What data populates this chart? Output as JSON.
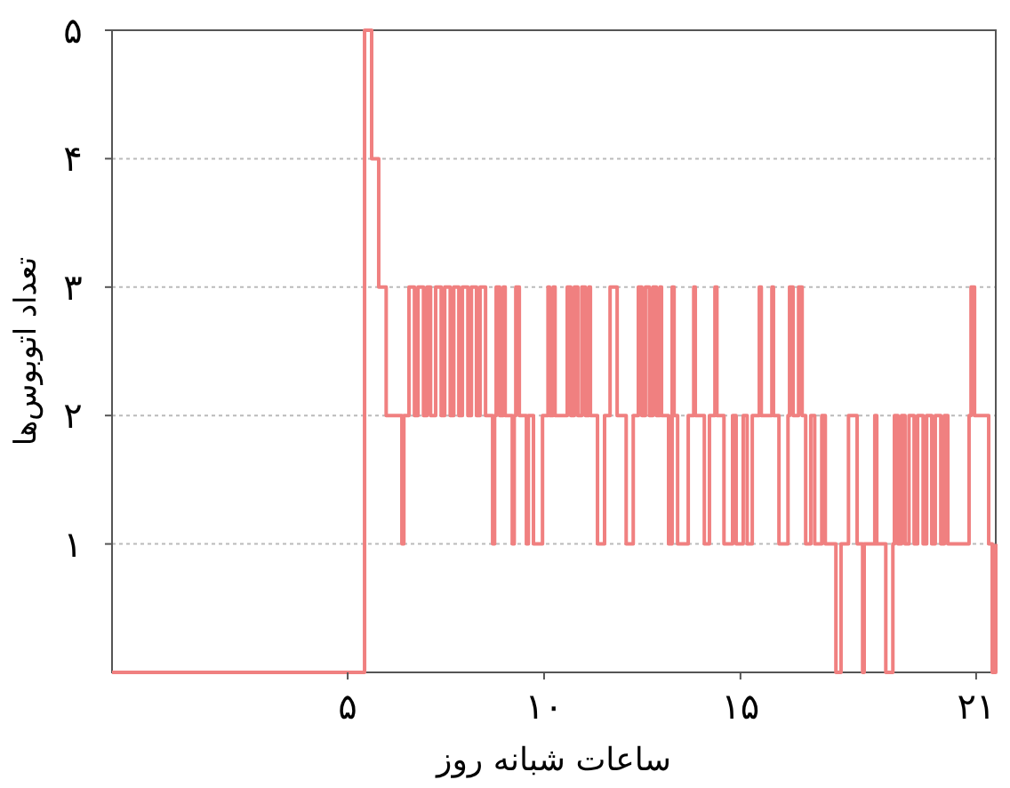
{
  "chart_data": {
    "type": "step",
    "xlabel": "ساعات شبانه روز",
    "ylabel": "تعداد اتوبوس‌ها",
    "xlim": [
      -1,
      21.5
    ],
    "ylim": [
      0,
      5
    ],
    "xticks": [
      {
        "value": 5,
        "label": "۵"
      },
      {
        "value": 10,
        "label": "۱۰"
      },
      {
        "value": 15,
        "label": "۱۵"
      },
      {
        "value": 21,
        "label": "۲۱"
      }
    ],
    "yticks": [
      {
        "value": 1,
        "label": "۱"
      },
      {
        "value": 2,
        "label": "۲"
      },
      {
        "value": 3,
        "label": "۳"
      },
      {
        "value": 4,
        "label": "۴"
      },
      {
        "value": 5,
        "label": "۵"
      }
    ],
    "grid": "y",
    "color": "#f08080",
    "x": [
      -1,
      5.43,
      5.61,
      5.79,
      5.98,
      6.38,
      6.43,
      6.56,
      6.7,
      6.79,
      6.93,
      7.02,
      7.11,
      7.24,
      7.38,
      7.47,
      7.61,
      7.7,
      7.83,
      7.92,
      8.06,
      8.15,
      8.28,
      8.37,
      8.51,
      8.69,
      8.74,
      8.78,
      8.87,
      8.96,
      9.01,
      9.19,
      9.24,
      9.28,
      9.37,
      9.55,
      9.6,
      9.73,
      9.96,
      10.1,
      10.14,
      10.23,
      10.28,
      10.59,
      10.68,
      10.77,
      10.86,
      10.96,
      11.05,
      11.14,
      11.18,
      11.36,
      11.54,
      11.68,
      11.86,
      12.09,
      12.27,
      12.4,
      12.49,
      12.58,
      12.68,
      12.77,
      12.86,
      12.95,
      12.99,
      13.17,
      13.26,
      13.31,
      13.4,
      13.67,
      13.81,
      13.85,
      14.08,
      14.21,
      14.35,
      14.4,
      14.58,
      14.8,
      14.89,
      15.07,
      15.17,
      15.3,
      15.48,
      15.53,
      15.8,
      15.84,
      15.98,
      16.21,
      16.25,
      16.34,
      16.48,
      16.57,
      16.66,
      16.79,
      16.89,
      17.07,
      17.16,
      17.43,
      17.56,
      17.75,
      17.97,
      18.11,
      18.15,
      18.42,
      18.47,
      18.7,
      18.88,
      18.92,
      19.01,
      19.1,
      19.19,
      19.29,
      19.42,
      19.51,
      19.65,
      19.74,
      19.87,
      19.96,
      20.1,
      20.19,
      20.28,
      20.82,
      20.87,
      20.96,
      21.32,
      21.41,
      21.5
    ],
    "values": [
      0,
      5,
      4,
      3,
      2,
      1,
      2,
      3,
      2,
      3,
      2,
      3,
      2,
      3,
      2,
      3,
      2,
      3,
      2,
      3,
      2,
      3,
      2,
      3,
      2,
      1,
      2,
      3,
      2,
      3,
      2,
      1,
      2,
      3,
      2,
      1,
      2,
      1,
      2,
      3,
      2,
      3,
      2,
      3,
      2,
      3,
      2,
      3,
      2,
      3,
      2,
      1,
      2,
      3,
      2,
      1,
      2,
      3,
      2,
      3,
      2,
      3,
      2,
      3,
      2,
      1,
      3,
      2,
      1,
      2,
      3,
      2,
      1,
      2,
      3,
      2,
      1,
      2,
      1,
      2,
      1,
      2,
      3,
      2,
      3,
      2,
      1,
      2,
      3,
      2,
      3,
      2,
      1,
      2,
      1,
      2,
      1,
      0,
      1,
      2,
      1,
      0,
      1,
      2,
      1,
      0,
      1,
      2,
      1,
      2,
      1,
      2,
      1,
      2,
      1,
      2,
      1,
      2,
      1,
      2,
      1,
      2,
      3,
      2,
      1,
      0,
      1
    ]
  }
}
